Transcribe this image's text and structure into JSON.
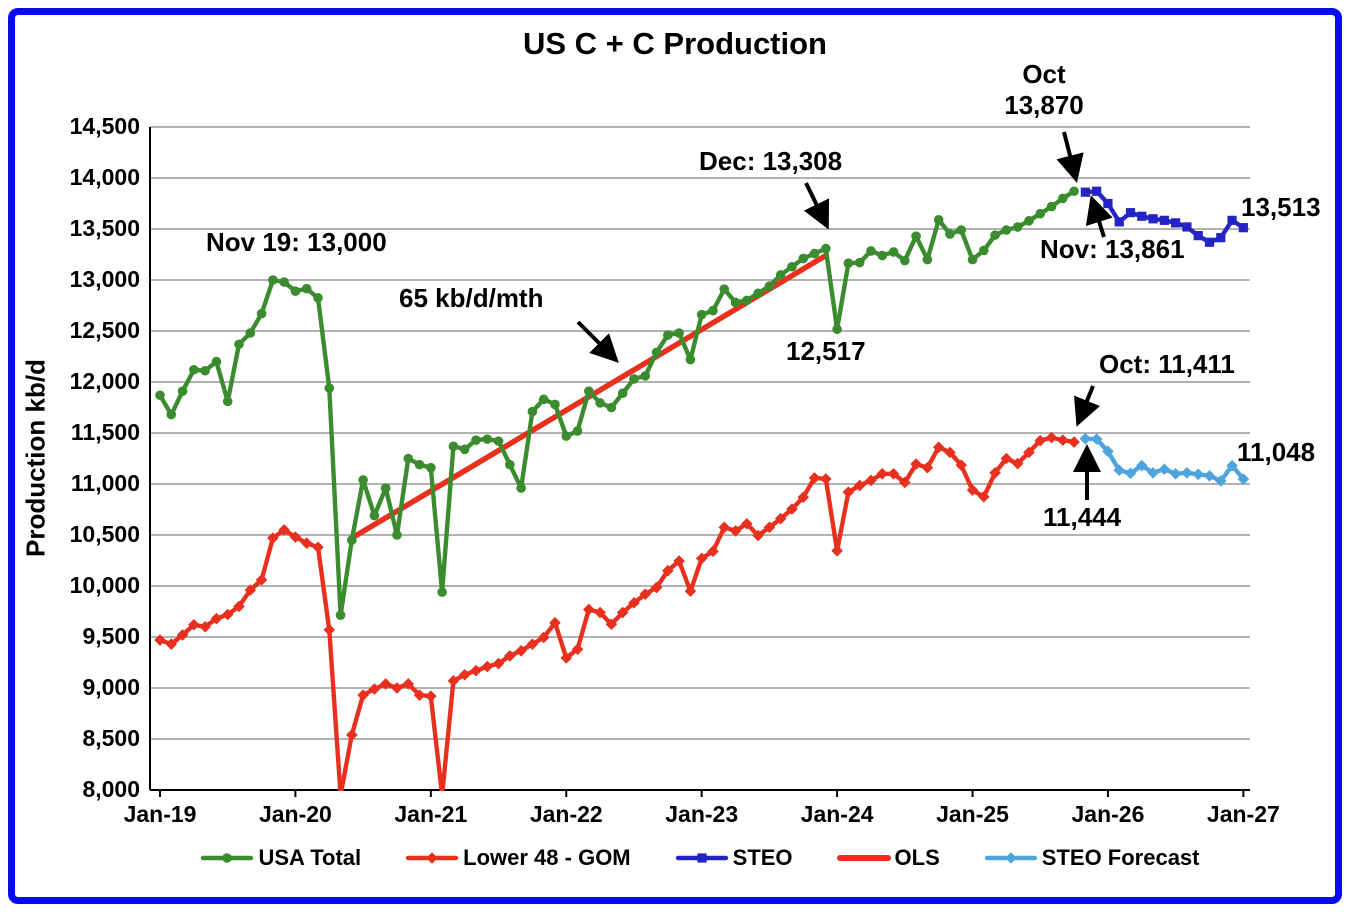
{
  "window": {
    "title": "US C + C Production"
  },
  "axes": {
    "y_label": "Production kb/d",
    "y_ticks": [
      {
        "value": 14500,
        "label": "14,500"
      },
      {
        "value": 14000,
        "label": "14,000"
      },
      {
        "value": 13500,
        "label": "13,500"
      },
      {
        "value": 13000,
        "label": "13,000"
      },
      {
        "value": 12500,
        "label": "12,500"
      },
      {
        "value": 12000,
        "label": "12,000"
      },
      {
        "value": 11500,
        "label": "11,500"
      },
      {
        "value": 11000,
        "label": "11,000"
      },
      {
        "value": 10500,
        "label": "10,500"
      },
      {
        "value": 10000,
        "label": "10,000"
      },
      {
        "value": 9500,
        "label": "9,500"
      },
      {
        "value": 9000,
        "label": "9,000"
      },
      {
        "value": 8500,
        "label": "8,500"
      },
      {
        "value": 8000,
        "label": "8,000"
      }
    ],
    "x_ticks": [
      {
        "label": "Jan-19"
      },
      {
        "label": "Jan-20"
      },
      {
        "label": "Jan-21"
      },
      {
        "label": "Jan-22"
      },
      {
        "label": "Jan-23"
      },
      {
        "label": "Jan-24"
      },
      {
        "label": "Jan-25"
      },
      {
        "label": "Jan-26"
      },
      {
        "label": "Jan-27"
      }
    ]
  },
  "colors": {
    "usa_total": "#3a8c2e",
    "lower48_gom": "#e8301f",
    "steo": "#2424c4",
    "ols": "#e8301f",
    "steo_forecast": "#4ea5de",
    "frame": "#0a0af0",
    "grid": "#858585",
    "axis": "#000000"
  },
  "legend": [
    {
      "label": "USA Total",
      "series": "usa_total",
      "marker": "circle"
    },
    {
      "label": "Lower 48 - GOM",
      "series": "lower48_gom",
      "marker": "diamond"
    },
    {
      "label": "STEO",
      "series": "steo",
      "marker": "square"
    },
    {
      "label": "OLS",
      "series": "ols",
      "marker": "line"
    },
    {
      "label": "STEO Forecast",
      "series": "steo_forecast",
      "marker": "diamond"
    }
  ],
  "chart_data": {
    "type": "line",
    "xlabel": "",
    "ylabel": "Production kb/d",
    "ylim": [
      8000,
      14500
    ],
    "x_range": [
      "Jan-19",
      "Jan-27"
    ],
    "grid": "horizontal",
    "legend_position": "bottom",
    "series": [
      {
        "name": "USA Total",
        "key": "usa_total",
        "marker": "circle",
        "start": "Jan-19",
        "values": [
          11870,
          11680,
          11910,
          12120,
          12110,
          12200,
          11810,
          12370,
          12480,
          12670,
          13000,
          12980,
          12890,
          12915,
          12825,
          11940,
          9714,
          10450,
          11040,
          10690,
          10960,
          10500,
          11250,
          11190,
          11160,
          9940,
          11370,
          11340,
          11430,
          11440,
          11420,
          11190,
          10960,
          11710,
          11830,
          11780,
          11470,
          11520,
          11910,
          11795,
          11750,
          11890,
          12030,
          12060,
          12290,
          12460,
          12480,
          12220,
          12660,
          12700,
          12910,
          12780,
          12800,
          12870,
          12940,
          13050,
          13130,
          13210,
          13260,
          13308,
          12517,
          13165,
          13170,
          13285,
          13240,
          13275,
          13190,
          13430,
          13200,
          13590,
          13450,
          13490,
          13200,
          13290,
          13440,
          13490,
          13520,
          13580,
          13650,
          13720,
          13800,
          13870
        ]
      },
      {
        "name": "Lower 48 - GOM",
        "key": "lower48_gom",
        "marker": "diamond",
        "start": "Jan-19",
        "values": [
          9470,
          9430,
          9520,
          9620,
          9600,
          9680,
          9720,
          9800,
          9960,
          10060,
          10470,
          10550,
          10480,
          10420,
          10380,
          9570,
          7950,
          8540,
          8930,
          8990,
          9040,
          9000,
          9040,
          8930,
          8920,
          7950,
          9070,
          9130,
          9170,
          9210,
          9240,
          9315,
          9365,
          9430,
          9495,
          9640,
          9295,
          9380,
          9770,
          9740,
          9625,
          9740,
          9835,
          9920,
          9985,
          10150,
          10245,
          9950,
          10270,
          10340,
          10575,
          10540,
          10610,
          10495,
          10575,
          10660,
          10755,
          10870,
          11060,
          11050,
          10345,
          10920,
          10985,
          11035,
          11100,
          11100,
          11015,
          11195,
          11160,
          11360,
          11310,
          11185,
          10940,
          10875,
          11110,
          11250,
          11200,
          11310,
          11425,
          11455,
          11430,
          11411
        ]
      },
      {
        "name": "STEO",
        "key": "steo",
        "marker": "square",
        "start": "Nov-25",
        "values": [
          13861,
          13870,
          13750,
          13570,
          13660,
          13625,
          13600,
          13585,
          13560,
          13520,
          13435,
          13370,
          13415,
          13585,
          13513
        ]
      },
      {
        "name": "OLS",
        "key": "ols",
        "marker": "none",
        "trend": true,
        "x0": "Jun-20",
        "v0": 10470,
        "x1": "Dec-23",
        "v1": 13240,
        "slope_label": "65 kb/d/mth"
      },
      {
        "name": "STEO Forecast",
        "key": "steo_forecast",
        "marker": "diamond",
        "start": "Nov-25",
        "values": [
          11444,
          11440,
          11320,
          11135,
          11105,
          11180,
          11110,
          11145,
          11100,
          11110,
          11095,
          11080,
          11030,
          11180,
          11048
        ]
      }
    ],
    "annotations": [
      {
        "id": "nov19-peak",
        "text": "Nov 19: 13,000"
      },
      {
        "id": "ols-slope",
        "text": "65 kb/d/mth"
      },
      {
        "id": "dec23-peak",
        "text": "Dec: 13,308"
      },
      {
        "id": "oct25-month",
        "text": "Oct"
      },
      {
        "id": "oct25-value",
        "text": "13,870"
      },
      {
        "id": "nov25-steo",
        "text": "Nov: 13,861"
      },
      {
        "id": "steo-end",
        "text": "13,513"
      },
      {
        "id": "jan24-dip",
        "text": "12,517"
      },
      {
        "id": "oct25-l48",
        "text": "Oct: 11,411"
      },
      {
        "id": "nov25-l48",
        "text": "11,444"
      },
      {
        "id": "forecast-end",
        "text": "11,048"
      }
    ]
  }
}
